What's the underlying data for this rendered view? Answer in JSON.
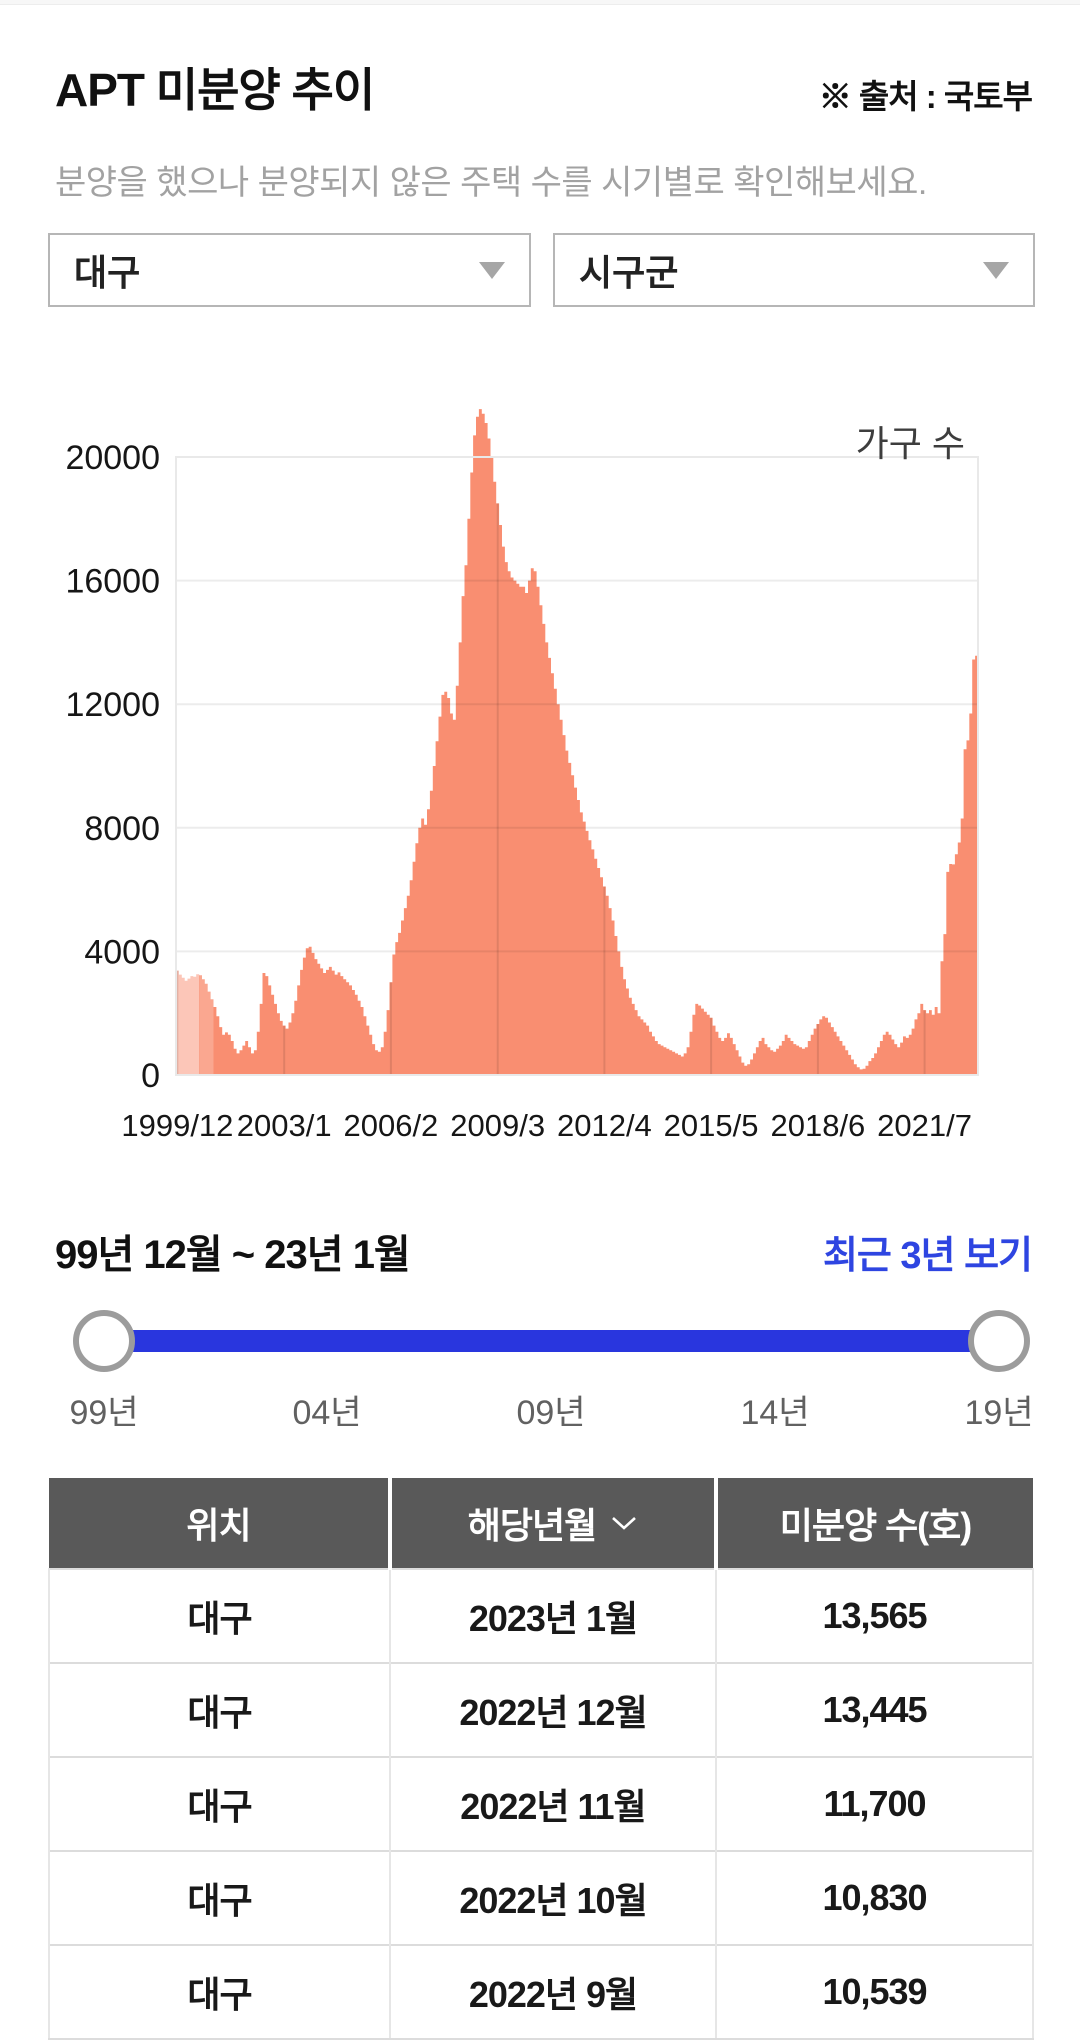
{
  "page": {
    "title": "APT 미분양 추이",
    "source_note": "※ 출처 : 국토부",
    "subtitle": "분양을 했으나 분양되지 않은 주택 수를 시기별로 확인해보세요."
  },
  "filters": {
    "region_value": "대구",
    "district_placeholder": "시구군"
  },
  "chart_data": {
    "type": "area",
    "title": "APT 미분양 추이 (대구)",
    "unit_label": "가구 수",
    "series_color": "#f98e71",
    "x_start": "1999/12",
    "x_end": "2023/1",
    "x_tick_labels": [
      "1999/12",
      "2003/1",
      "2006/2",
      "2009/3",
      "2012/4",
      "2015/5",
      "2018/6",
      "2021/7"
    ],
    "x_tick_month_indices": [
      0,
      37,
      74,
      111,
      148,
      185,
      222,
      259
    ],
    "y_ticks": [
      0,
      4000,
      8000,
      12000,
      16000,
      20000
    ],
    "ylim": [
      0,
      22000
    ],
    "grid": true,
    "values": [
      3380,
      3250,
      3150,
      3050,
      3120,
      3200,
      3180,
      3260,
      3230,
      3100,
      2950,
      2700,
      2450,
      2200,
      1900,
      1550,
      1300,
      1380,
      1300,
      1100,
      850,
      700,
      800,
      950,
      1100,
      900,
      700,
      800,
      1400,
      2300,
      3300,
      3200,
      2900,
      2600,
      2300,
      2000,
      1750,
      1600,
      1500,
      1700,
      2000,
      2400,
      2900,
      3400,
      3800,
      4100,
      4150,
      3950,
      3750,
      3600,
      3450,
      3300,
      3400,
      3500,
      3380,
      3250,
      3320,
      3200,
      3100,
      3000,
      2900,
      2750,
      2600,
      2400,
      2200,
      1900,
      1600,
      1300,
      1000,
      800,
      750,
      900,
      1400,
      2100,
      3000,
      3900,
      4300,
      4600,
      5000,
      5400,
      5800,
      6300,
      6900,
      7500,
      8000,
      8300,
      8100,
      8600,
      9200,
      10000,
      10800,
      11600,
      12300,
      12400,
      12200,
      11700,
      11500,
      12600,
      14000,
      15500,
      16500,
      18000,
      19500,
      20700,
      21300,
      21550,
      21400,
      21100,
      20600,
      20000,
      19200,
      18500,
      17800,
      17100,
      16600,
      16300,
      16100,
      16000,
      15900,
      15800,
      15800,
      15600,
      16000,
      16400,
      16300,
      15800,
      15200,
      14600,
      14000,
      13500,
      13000,
      12500,
      12000,
      11500,
      11000,
      10500,
      10100,
      9700,
      9300,
      8900,
      8500,
      8200,
      7900,
      7600,
      7300,
      7000,
      6700,
      6400,
      6100,
      5800,
      5400,
      5000,
      4500,
      4000,
      3500,
      3100,
      2800,
      2500,
      2300,
      2100,
      1900,
      1800,
      1700,
      1600,
      1400,
      1250,
      1100,
      1000,
      950,
      900,
      850,
      800,
      750,
      700,
      650,
      600,
      700,
      900,
      1400,
      1950,
      2300,
      2250,
      2150,
      2050,
      1950,
      1850,
      1600,
      1400,
      1200,
      1100,
      1200,
      1350,
      1200,
      1000,
      800,
      600,
      400,
      300,
      350,
      500,
      700,
      900,
      1100,
      1200,
      1000,
      900,
      800,
      750,
      850,
      950,
      1100,
      1300,
      1200,
      1100,
      1000,
      950,
      900,
      850,
      900,
      1100,
      1300,
      1500,
      1650,
      1800,
      1900,
      1850,
      1700,
      1550,
      1400,
      1250,
      1100,
      950,
      800,
      650,
      500,
      350,
      250,
      180,
      200,
      300,
      450,
      550,
      700,
      900,
      1100,
      1300,
      1400,
      1300,
      1150,
      1000,
      900,
      1050,
      1250,
      1200,
      1300,
      1500,
      1800,
      2000,
      2300,
      2100,
      2000,
      2100,
      1950,
      2200,
      2000,
      3678,
      4561,
      6572,
      6827,
      6816,
      7141,
      7523,
      8301,
      10539,
      10830,
      11700,
      13445,
      13565
    ]
  },
  "range": {
    "label": "99년 12월 ~ 23년 1월",
    "link_label": "최근 3년 보기",
    "track_color": "#2936de",
    "slider_ticks": [
      "99년",
      "04년",
      "09년",
      "14년",
      "19년"
    ]
  },
  "table": {
    "headers": [
      "위치",
      "해당년월",
      "미분양 수(호)"
    ],
    "sorted_column": "해당년월",
    "sort_direction": "desc",
    "rows": [
      [
        "대구",
        "2023년 1월",
        "13,565"
      ],
      [
        "대구",
        "2022년 12월",
        "13,445"
      ],
      [
        "대구",
        "2022년 11월",
        "11,700"
      ],
      [
        "대구",
        "2022년 10월",
        "10,830"
      ],
      [
        "대구",
        "2022년 9월",
        "10,539"
      ]
    ]
  }
}
